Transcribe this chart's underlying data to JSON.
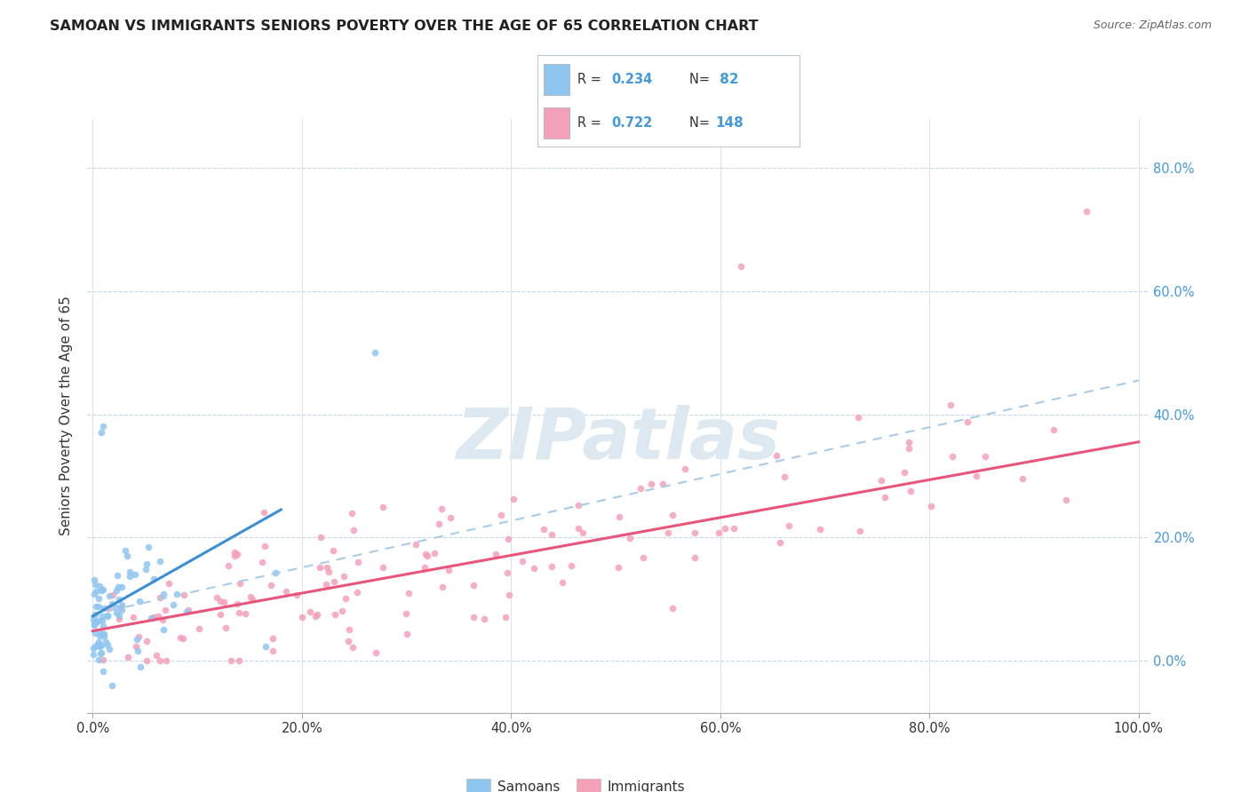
{
  "title": "SAMOAN VS IMMIGRANTS SENIORS POVERTY OVER THE AGE OF 65 CORRELATION CHART",
  "source": "Source: ZipAtlas.com",
  "ylabel_label": "Seniors Poverty Over the Age of 65",
  "legend_label1": "Samoans",
  "legend_label2": "Immigrants",
  "r1": 0.234,
  "n1": 82,
  "r2": 0.722,
  "n2": 148,
  "samoan_color": "#8ec6f0",
  "immigrant_color": "#f4a0b8",
  "trendline1_color": "#3b8fd4",
  "trendline2_color": "#e8547a",
  "trendline_dash_color": "#a8cce8",
  "background_color": "#ffffff",
  "grid_color": "#c8d8e8",
  "ytick_color": "#4499dd",
  "title_color": "#222222",
  "source_color": "#666666",
  "watermark_color": "#dde8f0",
  "trendline1_start_x": 0.0,
  "trendline1_end_x": 0.18,
  "trendline1_start_y": 0.072,
  "trendline1_end_y": 0.245,
  "trendline2_start_x": 0.0,
  "trendline2_end_x": 1.0,
  "trendline2_start_y": 0.048,
  "trendline2_end_y": 0.355,
  "trendline_dash_start_x": 0.0,
  "trendline_dash_end_x": 1.0,
  "trendline_dash_start_y": 0.075,
  "trendline_dash_end_y": 0.455,
  "xlim_min": -0.005,
  "xlim_max": 1.01,
  "ylim_min": -0.085,
  "ylim_max": 0.88,
  "xticks": [
    0.0,
    0.2,
    0.4,
    0.6,
    0.8,
    1.0
  ],
  "yticks": [
    0.0,
    0.2,
    0.4,
    0.6,
    0.8
  ],
  "xtick_labels": [
    "0.0%",
    "20.0%",
    "40.0%",
    "60.0%",
    "80.0%",
    "100.0%"
  ],
  "ytick_labels": [
    "0.0%",
    "20.0%",
    "40.0%",
    "60.0%",
    "80.0%"
  ]
}
